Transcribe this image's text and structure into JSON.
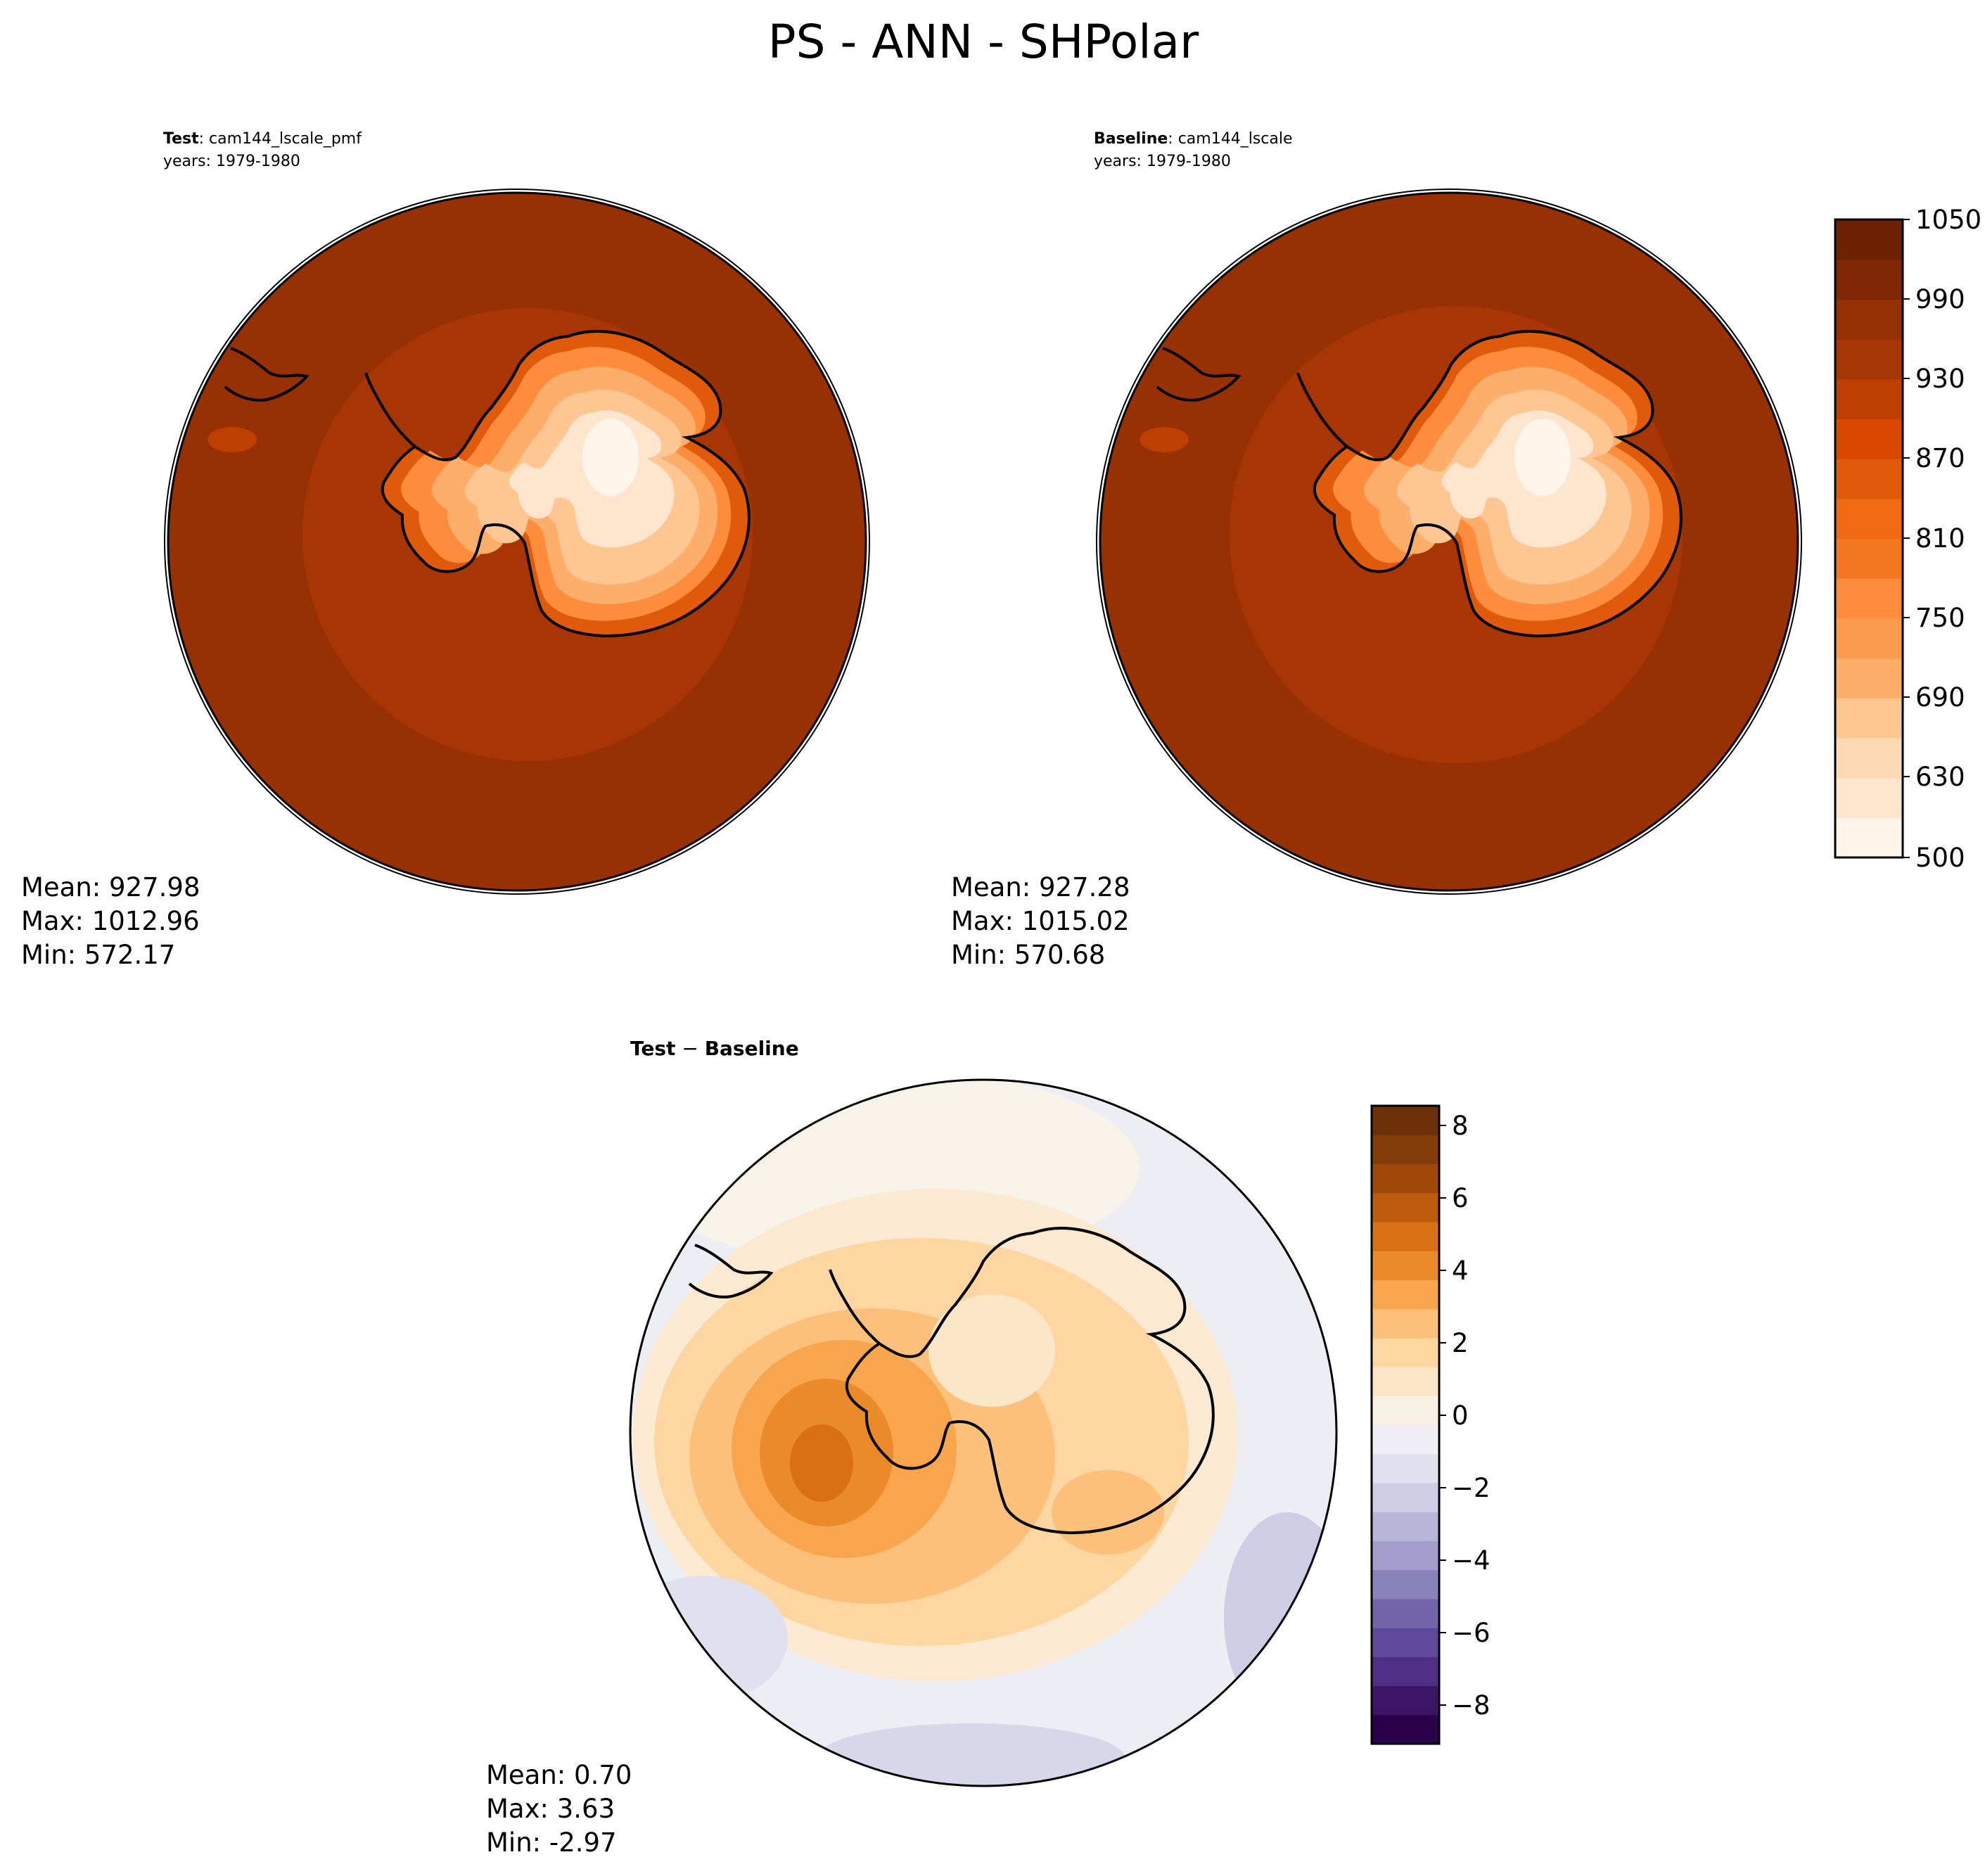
{
  "figure": {
    "title": "PS - ANN - SHPolar"
  },
  "panels": {
    "test": {
      "label_bold": "Test",
      "label_rest": ": cam144_lscale_pmf",
      "years": "years: 1979-1980",
      "stats": {
        "mean": "Mean: 927.98",
        "max": "Max: 1012.96",
        "min": "Min: 572.17"
      }
    },
    "baseline": {
      "label_bold": "Baseline",
      "label_rest": ": cam144_lscale",
      "years": "years: 1979-1980",
      "stats": {
        "mean": "Mean: 927.28",
        "max": "Max: 1015.02",
        "min": "Min: 570.68"
      }
    },
    "diff": {
      "label_bold_a": "Test",
      "label_op": " − ",
      "label_bold_b": "Baseline",
      "stats": {
        "mean": "Mean:  0.70",
        "max": "Max:  3.63",
        "min": "Min: -2.97"
      }
    }
  },
  "chart_data": [
    {
      "type": "heatmap",
      "name": "Test",
      "projection": "south polar stereographic",
      "variable": "PS",
      "mean": 927.98,
      "max": 1012.96,
      "min": 572.17,
      "contour_levels": [
        500,
        600,
        630,
        660,
        690,
        720,
        750,
        780,
        810,
        840,
        870,
        900,
        930,
        960,
        990,
        1020,
        1050
      ]
    },
    {
      "type": "heatmap",
      "name": "Baseline",
      "projection": "south polar stereographic",
      "variable": "PS",
      "mean": 927.28,
      "max": 1015.02,
      "min": 570.68,
      "contour_levels": [
        500,
        600,
        630,
        660,
        690,
        720,
        750,
        780,
        810,
        840,
        870,
        900,
        930,
        960,
        990,
        1020,
        1050
      ]
    },
    {
      "type": "heatmap",
      "name": "Test - Baseline",
      "projection": "south polar stereographic",
      "mean": 0.7,
      "max": 3.63,
      "min": -2.97
    }
  ],
  "colorbars": {
    "main": {
      "ticks": [
        "1050",
        "990",
        "930",
        "870",
        "810",
        "750",
        "690",
        "630",
        "500"
      ],
      "colors": [
        "#fff5eb",
        "#fee6ce",
        "#fdd9b4",
        "#fdc692",
        "#fdae6b",
        "#fd9b50",
        "#fd8d3c",
        "#f57622",
        "#f16913",
        "#e05a0c",
        "#d94801",
        "#bd3f02",
        "#a63603",
        "#953002",
        "#7f2704",
        "#6e2003"
      ]
    },
    "diff": {
      "ticks": [
        "8",
        "6",
        "4",
        "2",
        "0",
        "−2",
        "−4",
        "−6",
        "−8"
      ],
      "colors": [
        "#2d004b",
        "#3d1466",
        "#4f2e86",
        "#5e4a9a",
        "#7265a8",
        "#8a82bb",
        "#a49dcb",
        "#b9b5d9",
        "#cfcde5",
        "#e1e0ee",
        "#efeff5",
        "#f7f0e4",
        "#fbe6c7",
        "#fdd6a2",
        "#fdc07a",
        "#f8a54d",
        "#eb8a2a",
        "#d97114",
        "#bf5b0c",
        "#9f490b",
        "#843c08",
        "#6b3007"
      ]
    }
  },
  "colors": {
    "ocean_outer": "#973002",
    "ocean_mid": "#a73604",
    "plateau_high": "#fff0e0",
    "coastline": "#000000",
    "diff_positive": "#d97114",
    "diff_negative": "#c9c6e2"
  }
}
